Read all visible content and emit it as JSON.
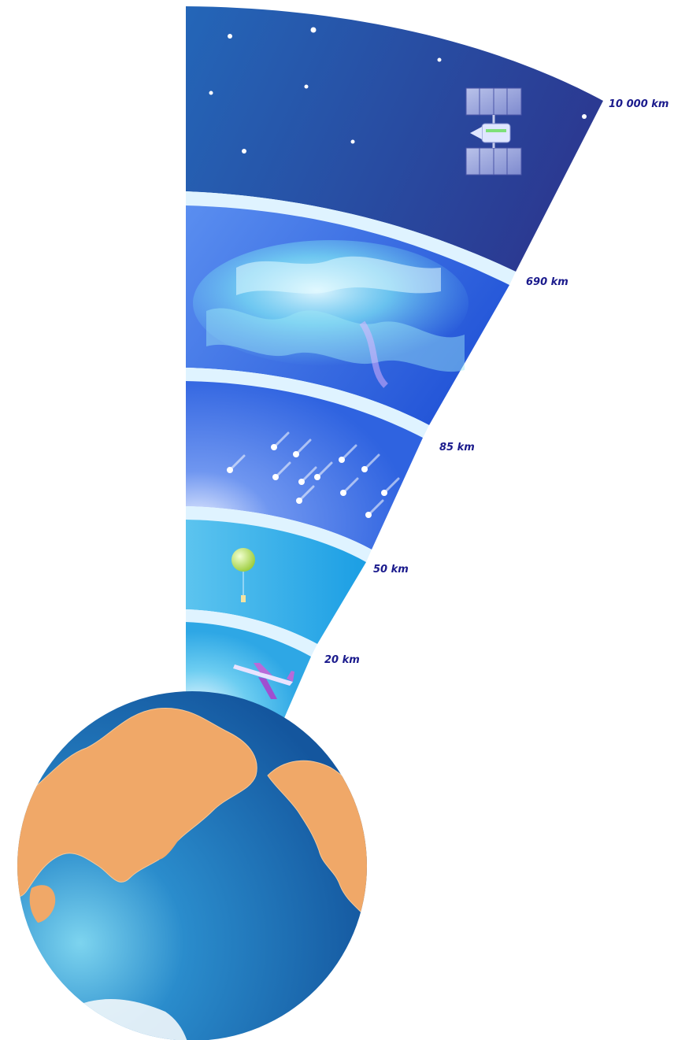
{
  "diagram": {
    "type": "atmosphere-layers",
    "layers": [
      {
        "name": "layer-troposphere",
        "upper_label": "20 km",
        "depicts": "airplane-icon"
      },
      {
        "name": "layer-stratosphere",
        "upper_label": "50 km",
        "depicts": "weather-balloon-icon"
      },
      {
        "name": "layer-mesosphere",
        "upper_label": "85 km",
        "depicts": "meteor-icon"
      },
      {
        "name": "layer-thermosphere",
        "upper_label": "690 km",
        "depicts": "aurora-icon"
      },
      {
        "name": "layer-exosphere",
        "upper_label": "10 000 km",
        "depicts": "satellite-icon"
      }
    ],
    "labels": {
      "l20": "20 km",
      "l50": "50 km",
      "l85": "85 km",
      "l690": "690 km",
      "l10000": "10 000 km"
    },
    "colors": {
      "ocean": "#1f6fb8",
      "land": "#f0a868",
      "label": "#1a1a8c",
      "exosphere": "#2a3f9a",
      "thermosphere": "#2f6be0",
      "mesosphere": "#3a78e8",
      "stratosphere": "#2aa5e6",
      "troposphere": "#3cb6ea"
    }
  }
}
